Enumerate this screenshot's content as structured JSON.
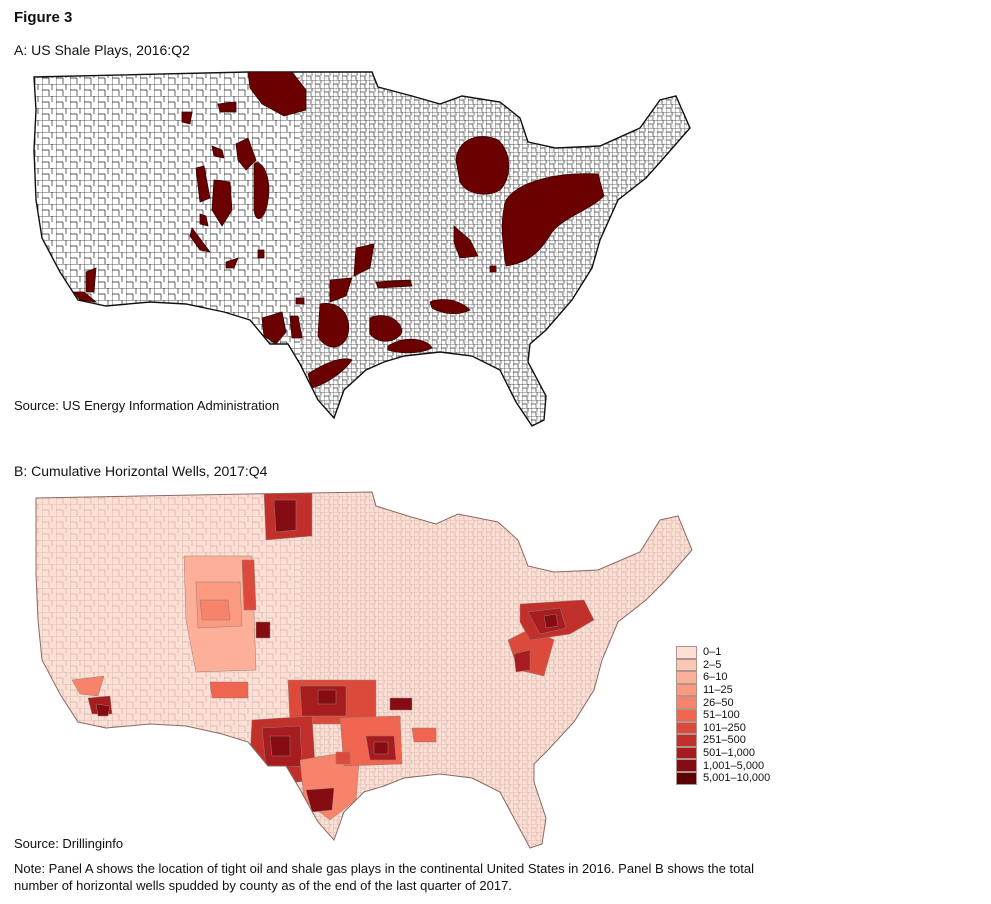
{
  "figure_title": "Figure 3",
  "panel_a": {
    "title": "A: US Shale Plays, 2016:Q2",
    "source": "Source: US Energy Information Administration",
    "play_color": "#6b0000"
  },
  "panel_b": {
    "title": "B: Cumulative Horizontal Wells, 2017:Q4",
    "source": "Source: Drillinginfo",
    "legend": [
      {
        "label": "0–1",
        "color": "#fde0d5"
      },
      {
        "label": "2–5",
        "color": "#fcc8b6"
      },
      {
        "label": "6–10",
        "color": "#fcb09a"
      },
      {
        "label": "11–25",
        "color": "#fb9a80"
      },
      {
        "label": "26–50",
        "color": "#f6836a"
      },
      {
        "label": "51–100",
        "color": "#ef6550"
      },
      {
        "label": "101–250",
        "color": "#dc4a3c"
      },
      {
        "label": "251–500",
        "color": "#c2302c"
      },
      {
        "label": "501–1,000",
        "color": "#a61c1f"
      },
      {
        "label": "1,001–5,000",
        "color": "#850c12"
      },
      {
        "label": "5,001–10,000",
        "color": "#5e0008"
      }
    ]
  },
  "note": "Note: Panel A shows the location of tight oil and shale gas plays in the continental United States in 2016. Panel B shows the total number of horizontal wells spudded by county as of the end of the last quarter of 2017."
}
